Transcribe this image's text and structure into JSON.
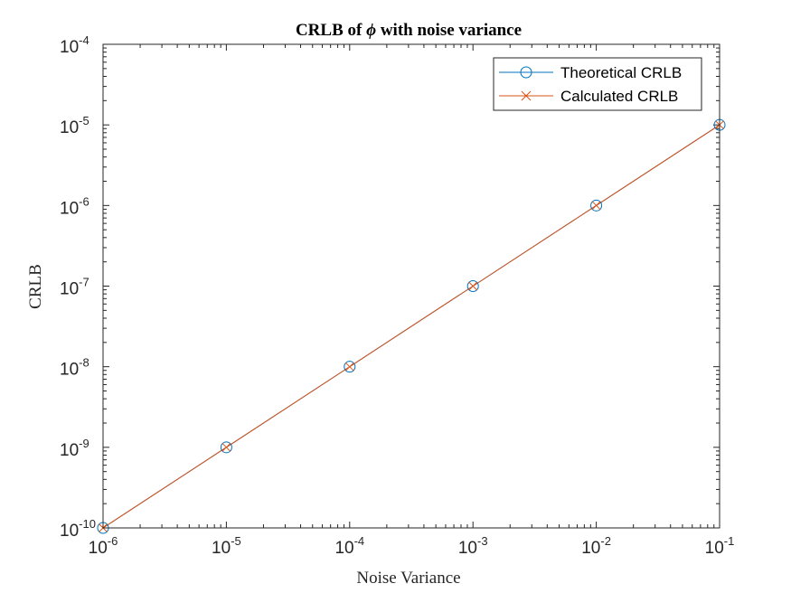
{
  "chart_data": {
    "type": "line",
    "title_prefix": "CRLB of ",
    "title_symbol": "ϕ",
    "title_suffix": " with noise variance",
    "xlabel": "Noise Variance",
    "ylabel": "CRLB",
    "xscale": "log",
    "yscale": "log",
    "xlim": [
      1e-06,
      0.1
    ],
    "ylim": [
      1e-10,
      0.0001
    ],
    "x_ticks": [
      {
        "base": "10",
        "exp": "-6"
      },
      {
        "base": "10",
        "exp": "-5"
      },
      {
        "base": "10",
        "exp": "-4"
      },
      {
        "base": "10",
        "exp": "-3"
      },
      {
        "base": "10",
        "exp": "-2"
      },
      {
        "base": "10",
        "exp": "-1"
      }
    ],
    "y_ticks": [
      {
        "base": "10",
        "exp": "-10"
      },
      {
        "base": "10",
        "exp": "-9"
      },
      {
        "base": "10",
        "exp": "-8"
      },
      {
        "base": "10",
        "exp": "-7"
      },
      {
        "base": "10",
        "exp": "-6"
      },
      {
        "base": "10",
        "exp": "-5"
      },
      {
        "base": "10",
        "exp": "-4"
      }
    ],
    "x": [
      1e-06,
      1e-05,
      0.0001,
      0.001,
      0.01,
      0.1
    ],
    "series": [
      {
        "name": "Theoretical CRLB",
        "values": [
          1e-10,
          1e-09,
          1e-08,
          1e-07,
          1e-06,
          1e-05
        ],
        "color": "#0072BD",
        "marker": "circle"
      },
      {
        "name": "Calculated CRLB",
        "values": [
          1e-10,
          1e-09,
          1e-08,
          1e-07,
          1e-06,
          1e-05
        ],
        "color": "#D95319",
        "marker": "x"
      }
    ],
    "legend_position": "top-right",
    "grid": false
  }
}
